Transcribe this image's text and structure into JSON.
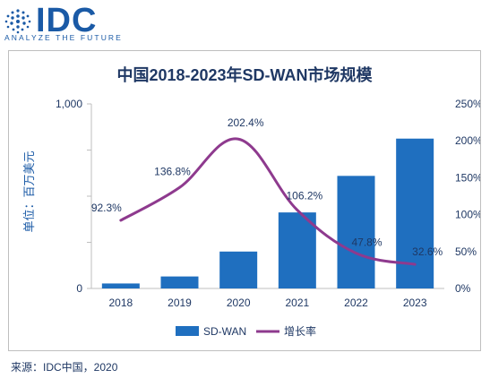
{
  "logo": {
    "brand": "IDC",
    "tagline": "ANALYZE THE FUTURE"
  },
  "source": "来源：IDC中国，2020",
  "colors": {
    "bar": "#1f6fbf",
    "line": "#8e3a8e",
    "axis_text": "#1f3864",
    "label_text": "#1f3864"
  },
  "chart_data": {
    "type": "bar",
    "title": "中国2018-2023年SD-WAN市场规模",
    "ylabel": "单位：百万美元",
    "categories": [
      "2018",
      "2019",
      "2020",
      "2021",
      "2022",
      "2023"
    ],
    "left_axis": {
      "ylim": [
        0,
        1000
      ],
      "ticks": [
        "0",
        "",
        "",
        "",
        "1,000"
      ],
      "tick_values": [
        0,
        250,
        500,
        750,
        1000
      ],
      "label_ticks": [
        {
          "value": 0,
          "label": "0"
        },
        {
          "value": 1000,
          "label": "1,000"
        }
      ]
    },
    "right_axis": {
      "ylim": [
        0,
        250
      ],
      "ticks": [
        {
          "value": 0,
          "label": "0%"
        },
        {
          "value": 50,
          "label": "50%"
        },
        {
          "value": 100,
          "label": "100%"
        },
        {
          "value": 150,
          "label": "150%"
        },
        {
          "value": 200,
          "label": "200%"
        },
        {
          "value": 250,
          "label": "250%"
        }
      ]
    },
    "series": [
      {
        "name": "SD-WAN",
        "type": "bar",
        "axis": "left",
        "values": [
          27,
          65,
          200,
          412,
          610,
          812
        ]
      },
      {
        "name": "增长率",
        "type": "line",
        "axis": "right",
        "values": [
          92.3,
          136.8,
          202.4,
          106.2,
          47.8,
          32.6
        ],
        "data_labels": [
          "92.3%",
          "136.8%",
          "202.4%",
          "106.2%",
          "47.8%",
          "32.6%"
        ]
      }
    ],
    "grid": false,
    "legend": "bottom"
  }
}
